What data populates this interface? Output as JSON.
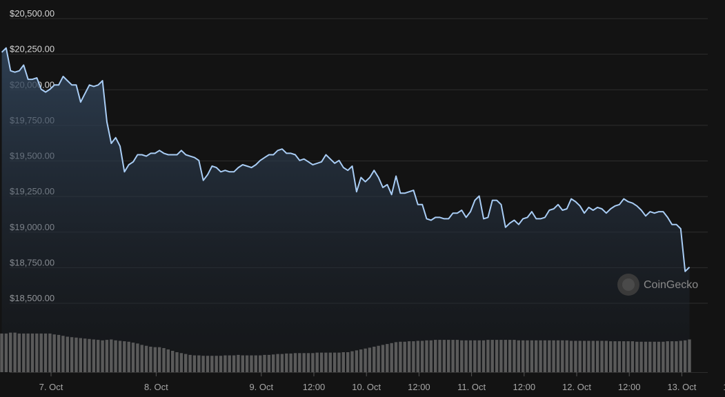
{
  "watermark": {
    "text": "CoinGecko",
    "icon": "coingecko-logo-icon"
  },
  "colors": {
    "background": "#131313",
    "line": "#a9cdf5",
    "volume": "#5a5a5a",
    "grid": "#2e2e2e"
  },
  "chart_data": {
    "type": "line",
    "title": "",
    "xlabel": "",
    "ylabel": "",
    "ylim": [
      18400,
      20520
    ],
    "yticks": [
      "$20,500.00",
      "$20,250.00",
      "$20,000.00",
      "$19,750.00",
      "$19,500.00",
      "$19,250.00",
      "$19,000.00",
      "$18,750.00",
      "$18,500.00"
    ],
    "ytick_values": [
      20500,
      20250,
      20000,
      19750,
      19500,
      19250,
      19000,
      18750,
      18500
    ],
    "xticks": [
      "7. Oct",
      "8. Oct",
      "9. Oct",
      "12:00",
      "10. Oct",
      "12:00",
      "11. Oct",
      "12:00",
      "12. Oct",
      "12:00",
      "13. Oct",
      "12:00"
    ],
    "xtick_hours": [
      24,
      48,
      72,
      84,
      96,
      108,
      120,
      132,
      144,
      156,
      168,
      180
    ],
    "x_start_hours": 12.75,
    "x_step_hours": 1,
    "grid": true,
    "series": [
      {
        "values": [
          20220,
          20250,
          20090,
          20080,
          20090,
          20130,
          20030,
          20030,
          20040,
          19960,
          19940,
          19960,
          19990,
          19990,
          20050,
          20020,
          19990,
          19990,
          19870,
          19930,
          19990,
          19980,
          19990,
          20020,
          19730,
          19580,
          19620,
          19560,
          19380,
          19430,
          19450,
          19500,
          19500,
          19490,
          19510,
          19510,
          19530,
          19510,
          19500,
          19500,
          19500,
          19530,
          19500,
          19490,
          19480,
          19460,
          19320,
          19360,
          19420,
          19410,
          19380,
          19390,
          19380,
          19380,
          19410,
          19430,
          19420,
          19410,
          19430,
          19460,
          19480,
          19500,
          19500,
          19530,
          19540,
          19510,
          19510,
          19500,
          19460,
          19470,
          19450,
          19430,
          19440,
          19450,
          19500,
          19470,
          19440,
          19460,
          19410,
          19390,
          19420,
          19240,
          19340,
          19310,
          19340,
          19390,
          19340,
          19270,
          19290,
          19220,
          19350,
          19230,
          19230,
          19240,
          19250,
          19150,
          19150,
          19050,
          19040,
          19060,
          19060,
          19050,
          19050,
          19090,
          19090,
          19110,
          19060,
          19100,
          19180,
          19210,
          19050,
          19060,
          19180,
          19180,
          19150,
          18990,
          19020,
          19040,
          19010,
          19050,
          19060,
          19100,
          19050,
          19050,
          19060,
          19110,
          19120,
          19150,
          19110,
          19120,
          19190,
          19170,
          19140,
          19090,
          19130,
          19110,
          19130,
          19120,
          19090,
          19120,
          19140,
          19150,
          19190,
          19170,
          19160,
          19140,
          19110,
          19070,
          19100,
          19090,
          19100,
          19100,
          19060,
          19010,
          19010,
          18980,
          18680,
          18710
        ]
      }
    ],
    "volume": {
      "values": [
        0.85,
        0.85,
        0.87,
        0.87,
        0.85,
        0.85,
        0.85,
        0.85,
        0.85,
        0.85,
        0.85,
        0.85,
        0.83,
        0.82,
        0.8,
        0.78,
        0.77,
        0.76,
        0.75,
        0.74,
        0.73,
        0.72,
        0.71,
        0.7,
        0.71,
        0.72,
        0.7,
        0.69,
        0.68,
        0.67,
        0.65,
        0.63,
        0.6,
        0.58,
        0.56,
        0.55,
        0.55,
        0.53,
        0.5,
        0.47,
        0.44,
        0.42,
        0.4,
        0.38,
        0.37,
        0.37,
        0.36,
        0.36,
        0.36,
        0.36,
        0.36,
        0.37,
        0.37,
        0.37,
        0.38,
        0.37,
        0.37,
        0.37,
        0.37,
        0.37,
        0.38,
        0.38,
        0.39,
        0.4,
        0.4,
        0.41,
        0.41,
        0.42,
        0.42,
        0.42,
        0.42,
        0.42,
        0.43,
        0.43,
        0.43,
        0.43,
        0.43,
        0.43,
        0.44,
        0.44,
        0.46,
        0.48,
        0.5,
        0.52,
        0.54,
        0.56,
        0.58,
        0.6,
        0.62,
        0.64,
        0.66,
        0.67,
        0.67,
        0.68,
        0.68,
        0.69,
        0.69,
        0.7,
        0.7,
        0.71,
        0.71,
        0.71,
        0.71,
        0.71,
        0.71,
        0.7,
        0.7,
        0.7,
        0.7,
        0.7,
        0.7,
        0.71,
        0.71,
        0.71,
        0.71,
        0.71,
        0.71,
        0.71,
        0.7,
        0.7,
        0.7,
        0.7,
        0.7,
        0.7,
        0.7,
        0.7,
        0.7,
        0.7,
        0.7,
        0.7,
        0.69,
        0.69,
        0.69,
        0.69,
        0.69,
        0.69,
        0.69,
        0.69,
        0.69,
        0.68,
        0.68,
        0.68,
        0.68,
        0.68,
        0.68,
        0.67,
        0.67,
        0.67,
        0.67,
        0.67,
        0.67,
        0.67,
        0.68,
        0.68,
        0.68,
        0.69,
        0.7,
        0.72
      ],
      "ylim": [
        0,
        1
      ]
    }
  }
}
